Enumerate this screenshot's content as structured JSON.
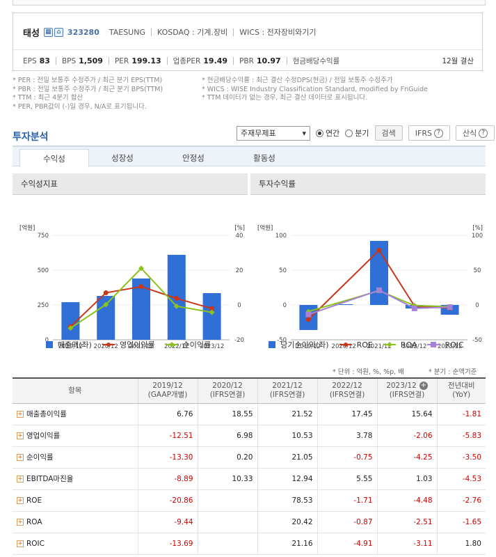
{
  "company": {
    "name": "태성",
    "code": "323280",
    "eng_name": "TAESUNG",
    "market": "KOSDAQ : 기계.장비",
    "wics": "WICS : 전자장비와기기",
    "icons": [
      "building-icon",
      "home-icon"
    ]
  },
  "metrics": [
    {
      "label": "EPS",
      "value": "83"
    },
    {
      "label": "BPS",
      "value": "1,509"
    },
    {
      "label": "PER",
      "value": "199.13"
    },
    {
      "label": "업종PER",
      "value": "19.49"
    },
    {
      "label": "PBR",
      "value": "10.97"
    },
    {
      "label": "현금배당수익률",
      "value": ""
    }
  ],
  "settlement": "12월 결산",
  "notes": {
    "left": [
      "* PER : 전일 보통주 수정주가 / 최근 분기 EPS(TTM)",
      "* PBR : 전일 보통주 수정주가 / 최근 분기 BPS(TTM)",
      "* TTM : 최근 4분기 합산",
      "* PER, PBR값이 (-)일 경우, N/A로 표기됩니다."
    ],
    "right": [
      "* 현금배당수익률 : 최근 결산 수정DPS(현금) / 전일 보통주 수정주가",
      "* WICS : WISE Industry Classification Standard, modified by FnGuide",
      "* TTM 데이터가 없는 경우, 최근 결산 데이터로 표시됩니다."
    ]
  },
  "analysis": {
    "title": "투자분석",
    "select_value": "주재무제표",
    "radio_annual": "연간",
    "radio_quarter": "분기",
    "search_button": "검색",
    "ifrs_button": "IFRS",
    "formula_button": "산식"
  },
  "tabs": [
    "수익성",
    "성장성",
    "안정성",
    "활동성"
  ],
  "panels": {
    "left_title": "수익성지표",
    "right_title": "투자수익률"
  },
  "colors": {
    "bar": "#2f6fd6",
    "red": "#c9371b",
    "green": "#8cc21e",
    "purple": "#a582d6",
    "negative": "#d10000"
  },
  "chart_data": [
    {
      "type": "bar",
      "title": "수익성지표",
      "categories": [
        "2019/12",
        "2020/12",
        "2021/12",
        "2022/12",
        "2023/12"
      ],
      "y_left_label": "[억원]",
      "y_right_label": "[%]",
      "y_left_lim": [
        0,
        750
      ],
      "y_left_ticks": [
        "0",
        "250",
        "500",
        "750"
      ],
      "y_right_lim": [
        -20,
        40
      ],
      "y_right_ticks": [
        "-20",
        "0",
        "20",
        "40"
      ],
      "bars": {
        "name": "매출액(좌)",
        "values": [
          270,
          315,
          440,
          610,
          335
        ]
      },
      "series": [
        {
          "name": "영업이익률",
          "values": [
            -12.51,
            6.98,
            10.53,
            3.78,
            -2.06
          ],
          "color": "#c9371b"
        },
        {
          "name": "순이익률",
          "values": [
            -13.3,
            0.2,
            21.05,
            -0.75,
            -4.25
          ],
          "color": "#8cc21e"
        }
      ]
    },
    {
      "type": "bar",
      "title": "투자수익률",
      "categories": [
        "2019/12",
        "2020/12",
        "2021/12",
        "2022/12",
        "2023/12"
      ],
      "y_left_label": "[억원]",
      "y_right_label": "[%]",
      "y_left_lim": [
        -50,
        100
      ],
      "y_left_ticks": [
        "-50",
        "0",
        "50",
        "100"
      ],
      "y_right_lim": [
        -50,
        100
      ],
      "y_right_ticks": [
        "-50",
        "0",
        "50",
        "100"
      ],
      "bars": {
        "name": "당기순이익(좌)",
        "values": [
          -36,
          1,
          92,
          -5,
          -14
        ]
      },
      "series": [
        {
          "name": "ROE",
          "values": [
            -20.86,
            null,
            78.53,
            -1.71,
            -4.48
          ],
          "color": "#c9371b"
        },
        {
          "name": "ROA",
          "values": [
            -9.44,
            null,
            20.42,
            -0.87,
            -2.51
          ],
          "color": "#8cc21e"
        },
        {
          "name": "ROIC",
          "values": [
            -13.69,
            null,
            21.16,
            -4.91,
            -3.11
          ],
          "color": "#a582d6"
        }
      ]
    }
  ],
  "units": {
    "unit": "* 단위 : 억원, %, %p, 배",
    "quarter": "* 분기 : 순액기준"
  },
  "table": {
    "headers": [
      {
        "l1": "항목",
        "l2": ""
      },
      {
        "l1": "2019/12",
        "l2": "(GAAP개별)"
      },
      {
        "l1": "2020/12",
        "l2": "(IFRS연결)"
      },
      {
        "l1": "2021/12",
        "l2": "(IFRS연결)"
      },
      {
        "l1": "2022/12",
        "l2": "(IFRS연결)"
      },
      {
        "l1": "2023/12",
        "l2": "(IFRS연결)"
      },
      {
        "l1": "전년대비",
        "l2": "(YoY)"
      }
    ],
    "rows": [
      {
        "label": "매출총이익률",
        "values": [
          "6.76",
          "18.55",
          "21.52",
          "17.45",
          "15.64",
          "-1.81"
        ]
      },
      {
        "label": "영업이익률",
        "values": [
          "-12.51",
          "6.98",
          "10.53",
          "3.78",
          "-2.06",
          "-5.83"
        ]
      },
      {
        "label": "순이익률",
        "values": [
          "-13.30",
          "0.20",
          "21.05",
          "-0.75",
          "-4.25",
          "-3.50"
        ]
      },
      {
        "label": "EBITDA마진율",
        "values": [
          "-8.89",
          "10.33",
          "12.94",
          "5.55",
          "1.03",
          "-4.53"
        ]
      },
      {
        "label": "ROE",
        "values": [
          "-20.86",
          "",
          "78.53",
          "-1.71",
          "-4.48",
          "-2.76"
        ]
      },
      {
        "label": "ROA",
        "values": [
          "-9.44",
          "",
          "20.42",
          "-0.87",
          "-2.51",
          "-1.65"
        ]
      },
      {
        "label": "ROIC",
        "values": [
          "-13.69",
          "",
          "21.16",
          "-4.91",
          "-3.11",
          "1.80"
        ]
      }
    ]
  }
}
